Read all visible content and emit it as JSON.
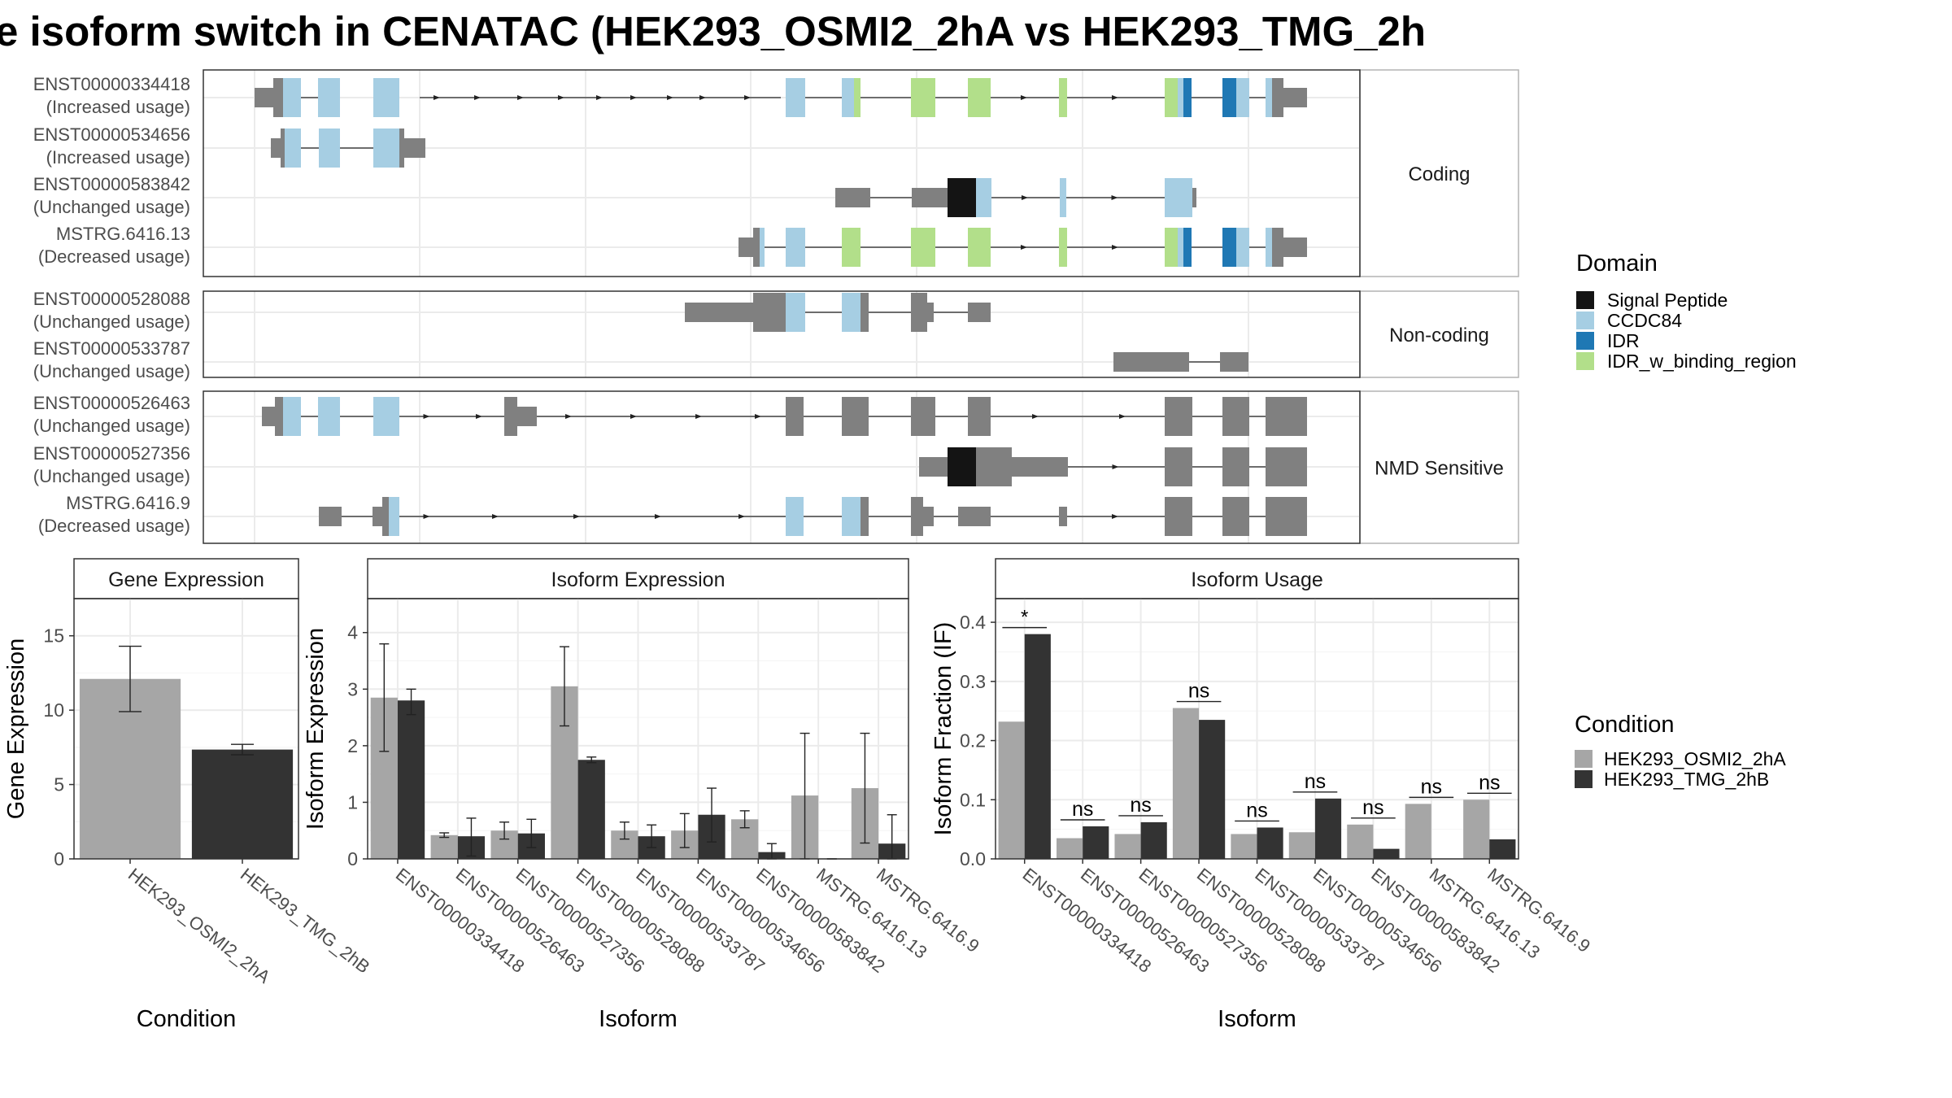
{
  "title": "e isoform switch in CENATAC (HEK293_OSMI2_2hA vs HEK293_TMG_2h",
  "domain_legend": {
    "title": "Domain",
    "items": [
      {
        "label": "Signal Peptide",
        "color": "#141414"
      },
      {
        "label": "CCDC84",
        "color": "#a6cee3"
      },
      {
        "label": "IDR",
        "color": "#1f78b4"
      },
      {
        "label": "IDR_w_binding_region",
        "color": "#b2df8a"
      }
    ]
  },
  "condition_legend": {
    "title": "Condition",
    "items": [
      {
        "label": "HEK293_OSMI2_2hA",
        "color": "#a6a6a6"
      },
      {
        "label": "HEK293_TMG_2hB",
        "color": "#333333"
      }
    ]
  },
  "structure_panels": [
    {
      "label": "Coding",
      "transcripts": [
        {
          "id": "ENST00000334418",
          "usage": "(Increased usage)"
        },
        {
          "id": "ENST00000534656",
          "usage": "(Increased usage)"
        },
        {
          "id": "ENST00000583842",
          "usage": "(Unchanged usage)"
        },
        {
          "id": "MSTRG.6416.13",
          "usage": "(Decreased usage)"
        }
      ]
    },
    {
      "label": "Non-coding",
      "transcripts": [
        {
          "id": "ENST00000528088",
          "usage": "(Unchanged usage)"
        },
        {
          "id": "ENST00000533787",
          "usage": "(Unchanged usage)"
        }
      ]
    },
    {
      "label": "NMD Sensitive",
      "transcripts": [
        {
          "id": "ENST00000526463",
          "usage": "(Unchanged usage)"
        },
        {
          "id": "ENST00000527356",
          "usage": "(Unchanged usage)"
        },
        {
          "id": "MSTRG.6416.9",
          "usage": "(Decreased usage)"
        }
      ]
    }
  ],
  "chart_data": [
    {
      "type": "bar",
      "title": "Gene Expression",
      "xlabel": "Condition",
      "ylabel": "Gene Expression",
      "categories": [
        "HEK293_OSMI2_2hA",
        "HEK293_TMG_2hB"
      ],
      "ylim": [
        0,
        17.5
      ],
      "yticks": [
        0,
        5,
        10,
        15
      ],
      "values": [
        12.1,
        7.35
      ],
      "errors": [
        [
          9.9,
          14.3
        ],
        [
          7.0,
          7.7
        ]
      ],
      "colors": [
        "#a6a6a6",
        "#333333"
      ],
      "grid": true
    },
    {
      "type": "bar",
      "title": "Isoform Expression",
      "xlabel": "Isoform",
      "ylabel": "Isoform Expression",
      "categories": [
        "ENST00000334418",
        "ENST00000526463",
        "ENST00000527356",
        "ENST00000528088",
        "ENST00000533787",
        "ENST00000534656",
        "ENST00000583842",
        "MSTRG.6416.13",
        "MSTRG.6416.9"
      ],
      "ylim": [
        0,
        4.6
      ],
      "yticks": [
        0,
        1,
        2,
        3,
        4
      ],
      "series": [
        {
          "name": "HEK293_OSMI2_2hA",
          "values": [
            2.85,
            0.42,
            0.5,
            3.05,
            0.5,
            0.5,
            0.7,
            1.12,
            1.25
          ],
          "errors": [
            [
              1.9,
              3.8
            ],
            [
              0.38,
              0.46
            ],
            [
              0.35,
              0.65
            ],
            [
              2.35,
              3.75
            ],
            [
              0.35,
              0.65
            ],
            [
              0.2,
              0.8
            ],
            [
              0.55,
              0.85
            ],
            [
              0.0,
              2.22
            ],
            [
              0.28,
              2.22
            ]
          ]
        },
        {
          "name": "HEK293_TMG_2hB",
          "values": [
            2.8,
            0.4,
            0.45,
            1.75,
            0.4,
            0.78,
            0.12,
            0.0,
            0.27
          ],
          "errors": [
            [
              2.55,
              3.0
            ],
            [
              0.05,
              0.72
            ],
            [
              0.2,
              0.7
            ],
            [
              1.7,
              1.8
            ],
            [
              0.2,
              0.6
            ],
            [
              0.3,
              1.25
            ],
            [
              0.0,
              0.27
            ],
            [
              0.0,
              0.0
            ],
            [
              0.0,
              0.78
            ]
          ]
        }
      ],
      "grid": true
    },
    {
      "type": "bar",
      "title": "Isoform Usage",
      "xlabel": "Isoform",
      "ylabel": "Isoform Fraction (IF)",
      "categories": [
        "ENST00000334418",
        "ENST00000526463",
        "ENST00000527356",
        "ENST00000528088",
        "ENST00000533787",
        "ENST00000534656",
        "ENST00000583842",
        "MSTRG.6416.13",
        "MSTRG.6416.9"
      ],
      "ylim": [
        0,
        0.44
      ],
      "yticks": [
        "0.0",
        "0.1",
        "0.2",
        "0.3",
        "0.4"
      ],
      "series": [
        {
          "name": "HEK293_OSMI2_2hA",
          "values": [
            0.232,
            0.035,
            0.042,
            0.255,
            0.042,
            0.045,
            0.058,
            0.093,
            0.1
          ]
        },
        {
          "name": "HEK293_TMG_2hB",
          "values": [
            0.38,
            0.055,
            0.062,
            0.235,
            0.053,
            0.102,
            0.017,
            0.0,
            0.033
          ]
        }
      ],
      "significance": [
        "*",
        "ns",
        "ns",
        "ns",
        "ns",
        "ns",
        "ns",
        "ns",
        "ns"
      ],
      "grid": true
    }
  ]
}
